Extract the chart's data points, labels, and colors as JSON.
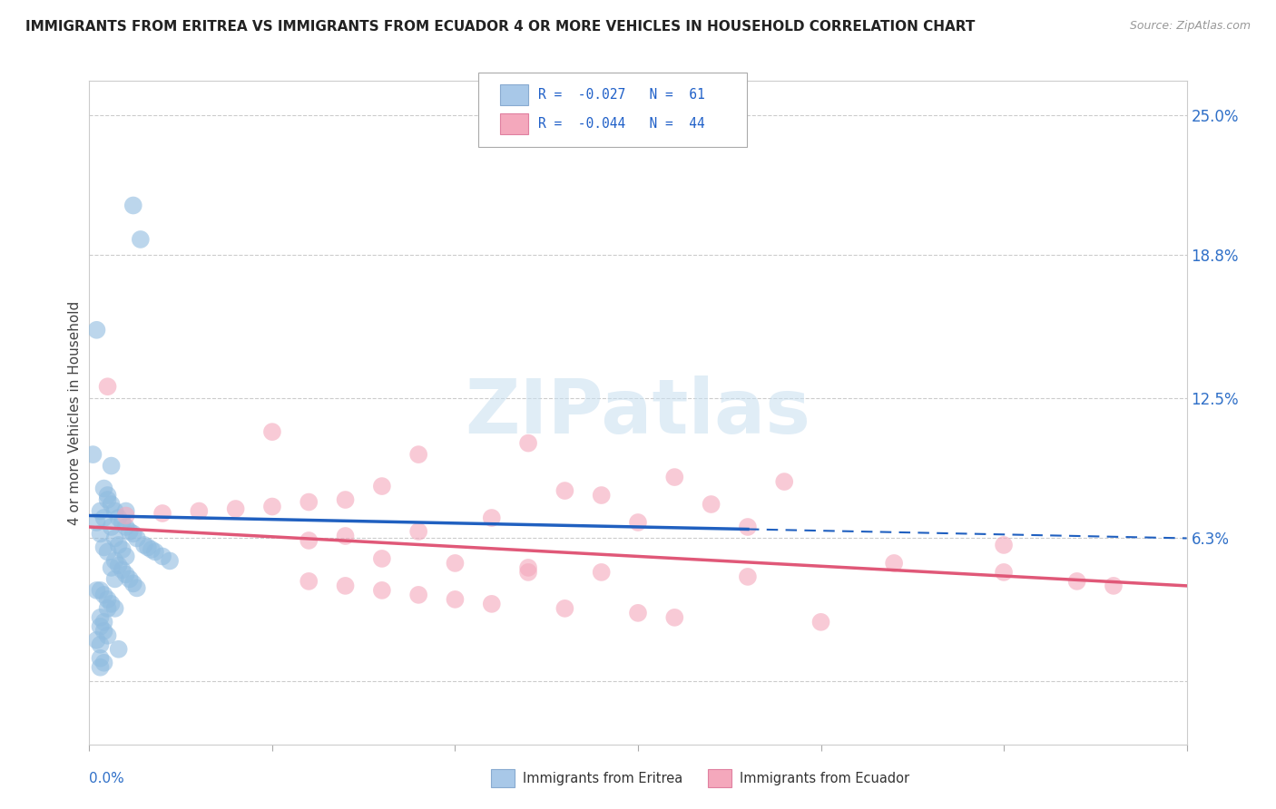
{
  "title": "IMMIGRANTS FROM ERITREA VS IMMIGRANTS FROM ECUADOR 4 OR MORE VEHICLES IN HOUSEHOLD CORRELATION CHART",
  "source": "Source: ZipAtlas.com",
  "ylabel": "4 or more Vehicles in Household",
  "xmin": 0.0,
  "xmax": 0.3,
  "ymin": -0.028,
  "ymax": 0.265,
  "ytick_vals": [
    0.0,
    0.063,
    0.125,
    0.188,
    0.25
  ],
  "ytick_labels": [
    "",
    "6.3%",
    "12.5%",
    "18.8%",
    "25.0%"
  ],
  "eritrea_color": "#90bce0",
  "ecuador_color": "#f4a8bc",
  "trend_eritrea_color": "#2060c0",
  "trend_ecuador_color": "#e05878",
  "watermark": "ZIPatlas",
  "eritrea_x": [
    0.003,
    0.004,
    0.005,
    0.006,
    0.006,
    0.007,
    0.007,
    0.008,
    0.008,
    0.009,
    0.009,
    0.01,
    0.01,
    0.011,
    0.012,
    0.012,
    0.013,
    0.014,
    0.015,
    0.016,
    0.017,
    0.018,
    0.02,
    0.022,
    0.003,
    0.004,
    0.004,
    0.005,
    0.005,
    0.006,
    0.007,
    0.008,
    0.009,
    0.01,
    0.011,
    0.012,
    0.013,
    0.003,
    0.004,
    0.005,
    0.006,
    0.007,
    0.003,
    0.004,
    0.005,
    0.003,
    0.004,
    0.002,
    0.003,
    0.004,
    0.002,
    0.002,
    0.003,
    0.001,
    0.002,
    0.003,
    0.01,
    0.005,
    0.006,
    0.007,
    0.008
  ],
  "eritrea_y": [
    0.075,
    0.072,
    0.08,
    0.078,
    0.068,
    0.075,
    0.063,
    0.072,
    0.06,
    0.07,
    0.058,
    0.068,
    0.055,
    0.066,
    0.065,
    0.21,
    0.063,
    0.195,
    0.06,
    0.059,
    0.058,
    0.057,
    0.055,
    0.053,
    0.065,
    0.059,
    0.085,
    0.082,
    0.057,
    0.095,
    0.053,
    0.051,
    0.049,
    0.047,
    0.045,
    0.043,
    0.041,
    0.04,
    0.038,
    0.036,
    0.034,
    0.032,
    0.028,
    0.026,
    0.02,
    0.01,
    0.008,
    0.155,
    0.024,
    0.022,
    0.018,
    0.07,
    0.006,
    0.1,
    0.04,
    0.016,
    0.075,
    0.032,
    0.05,
    0.045,
    0.014
  ],
  "ecuador_x": [
    0.005,
    0.01,
    0.02,
    0.03,
    0.04,
    0.05,
    0.06,
    0.06,
    0.07,
    0.07,
    0.08,
    0.08,
    0.09,
    0.09,
    0.1,
    0.11,
    0.12,
    0.12,
    0.13,
    0.13,
    0.14,
    0.14,
    0.15,
    0.16,
    0.16,
    0.17,
    0.18,
    0.19,
    0.2,
    0.22,
    0.06,
    0.08,
    0.1,
    0.12,
    0.15,
    0.18,
    0.25,
    0.28,
    0.05,
    0.07,
    0.09,
    0.11,
    0.25,
    0.27
  ],
  "ecuador_y": [
    0.13,
    0.073,
    0.074,
    0.075,
    0.076,
    0.077,
    0.079,
    0.062,
    0.08,
    0.064,
    0.086,
    0.04,
    0.1,
    0.038,
    0.052,
    0.072,
    0.105,
    0.05,
    0.084,
    0.032,
    0.082,
    0.048,
    0.07,
    0.09,
    0.028,
    0.078,
    0.068,
    0.088,
    0.026,
    0.052,
    0.044,
    0.054,
    0.036,
    0.048,
    0.03,
    0.046,
    0.048,
    0.042,
    0.11,
    0.042,
    0.066,
    0.034,
    0.06,
    0.044
  ],
  "trend_e_x0": 0.0,
  "trend_e_x1": 0.3,
  "trend_e_y0": 0.073,
  "trend_e_y1": 0.063,
  "trend_e_dash_x0": 0.18,
  "trend_e_dash_x1": 0.3,
  "trend_q_x0": 0.0,
  "trend_q_x1": 0.3,
  "trend_q_y0": 0.068,
  "trend_q_y1": 0.042
}
